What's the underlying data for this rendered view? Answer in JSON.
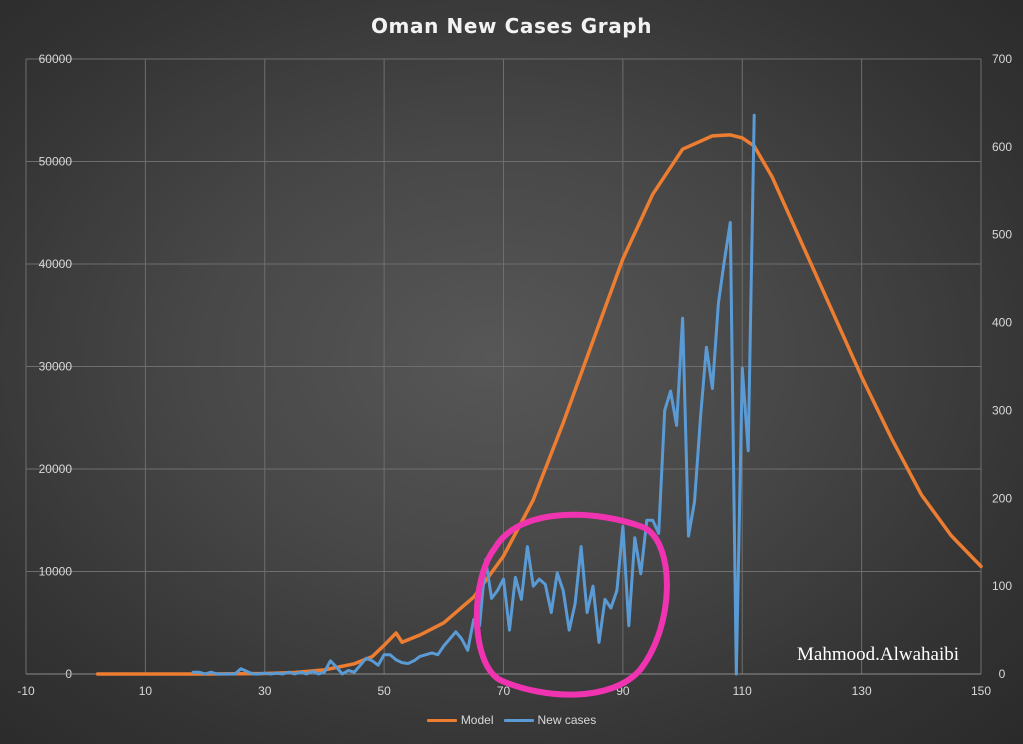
{
  "chart_data": {
    "type": "line",
    "title": "Oman New Cases Graph",
    "xlabel": "",
    "ylabel": "",
    "xlim": [
      -10,
      150
    ],
    "x_ticks": [
      -10,
      10,
      30,
      50,
      70,
      90,
      110,
      130,
      150
    ],
    "ylim_left": [
      0,
      60000
    ],
    "y_ticks_left": [
      0,
      10000,
      20000,
      30000,
      40000,
      50000,
      60000
    ],
    "ylim_right": [
      0,
      700
    ],
    "y_ticks_right": [
      0,
      100,
      200,
      300,
      400,
      500,
      600,
      700
    ],
    "grid": true,
    "legend_position": "bottom",
    "series": [
      {
        "name": "Model",
        "axis": "left",
        "color": "#ed7d31",
        "x": [
          2,
          10,
          20,
          30,
          35,
          40,
          45,
          48,
          50,
          52,
          53,
          56,
          60,
          65,
          70,
          75,
          80,
          85,
          90,
          95,
          100,
          105,
          108,
          110,
          112,
          115,
          120,
          125,
          130,
          135,
          140,
          145,
          150
        ],
        "values": [
          0,
          0,
          0,
          50,
          150,
          400,
          1000,
          1700,
          2800,
          4000,
          3100,
          3800,
          5000,
          7500,
          11500,
          17000,
          24500,
          32500,
          40500,
          46800,
          51200,
          52500,
          52600,
          52300,
          51500,
          48500,
          42000,
          35500,
          29000,
          23000,
          17500,
          13500,
          10500
        ]
      },
      {
        "name": "New cases",
        "axis": "right",
        "color": "#5b9bd5",
        "x": [
          18,
          19,
          20,
          21,
          22,
          23,
          24,
          25,
          26,
          27,
          28,
          29,
          30,
          31,
          32,
          33,
          34,
          35,
          36,
          37,
          38,
          39,
          40,
          41,
          42,
          43,
          44,
          45,
          46,
          47,
          48,
          49,
          50,
          51,
          52,
          53,
          54,
          55,
          56,
          57,
          58,
          59,
          60,
          61,
          62,
          63,
          64,
          65,
          66,
          67,
          68,
          69,
          70,
          71,
          72,
          73,
          74,
          75,
          76,
          77,
          78,
          79,
          80,
          81,
          82,
          83,
          84,
          85,
          86,
          87,
          88,
          89,
          90,
          91,
          92,
          93,
          94,
          95,
          96,
          97,
          98,
          99,
          100,
          101,
          102,
          103,
          104,
          105,
          106,
          107,
          108,
          109,
          110,
          111,
          112
        ],
        "values": [
          2,
          2,
          0,
          2,
          0,
          0,
          0,
          0,
          6,
          3,
          0,
          0,
          1,
          0,
          1,
          0,
          2,
          0,
          2,
          0,
          3,
          0,
          2,
          15,
          8,
          0,
          4,
          2,
          10,
          18,
          15,
          10,
          22,
          22,
          16,
          13,
          12,
          15,
          20,
          22,
          24,
          22,
          32,
          40,
          48,
          40,
          27,
          62,
          55,
          130,
          86,
          95,
          108,
          50,
          110,
          85,
          145,
          100,
          108,
          102,
          70,
          115,
          95,
          50,
          80,
          145,
          70,
          100,
          36,
          85,
          75,
          95,
          168,
          55,
          155,
          114,
          175,
          175,
          160,
          300,
          322,
          283,
          405,
          157,
          196,
          292,
          372,
          325,
          422,
          470,
          514,
          0,
          348,
          254,
          636
        ]
      }
    ]
  },
  "watermark": "Mahmood.Alwahaibi",
  "annotation": {
    "shape": "hand-drawn circle",
    "color": "#f033b0"
  }
}
